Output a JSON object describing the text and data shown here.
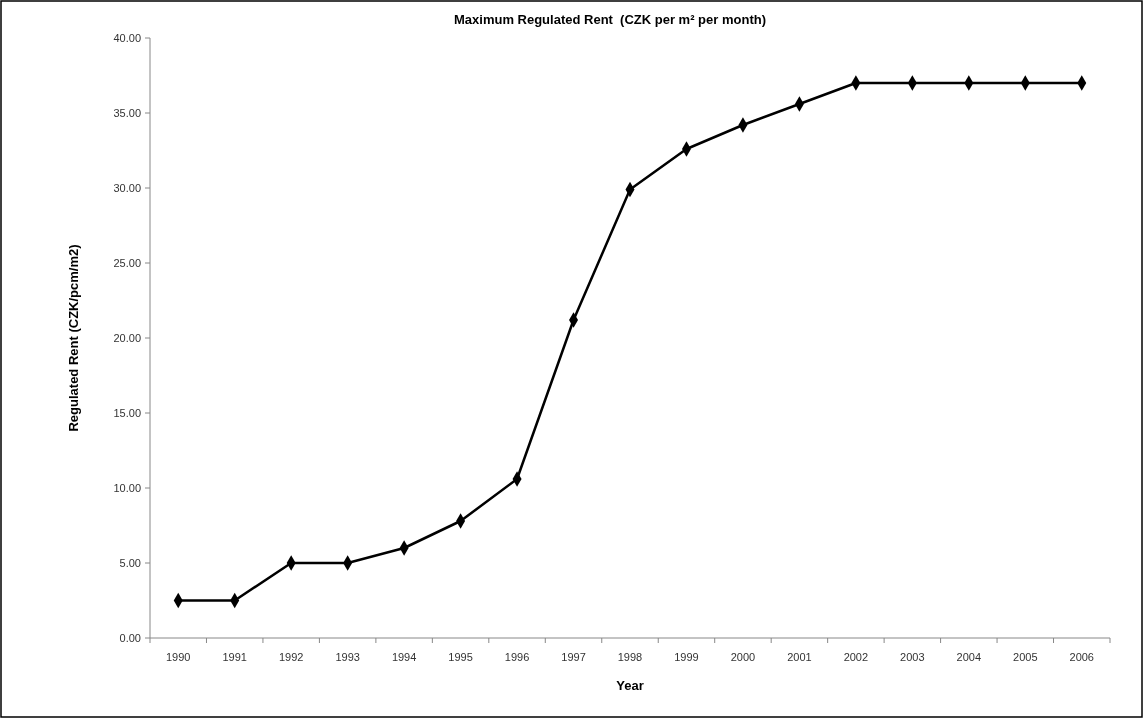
{
  "chart_data": {
    "type": "line",
    "title": "Maximum Regulated Rent  (CZK per m² per month)",
    "xlabel": "Year",
    "ylabel": "Regulated Rent (CZK/pcm/m2)",
    "categories": [
      "1990",
      "1991",
      "1992",
      "1993",
      "1994",
      "1995",
      "1996",
      "1997",
      "1998",
      "1999",
      "2000",
      "2001",
      "2002",
      "2003",
      "2004",
      "2005",
      "2006"
    ],
    "series": [
      {
        "color": "#000000",
        "values": [
          2.5,
          2.5,
          5.0,
          5.0,
          6.0,
          7.8,
          10.6,
          21.2,
          29.9,
          32.6,
          34.2,
          35.6,
          37.0,
          37.0,
          37.0,
          37.0,
          37.0
        ]
      }
    ],
    "ylim": [
      0,
      40
    ],
    "yticks": [
      {
        "value": 0,
        "label": "0.00"
      },
      {
        "value": 5,
        "label": "5.00"
      },
      {
        "value": 10,
        "label": "10.00"
      },
      {
        "value": 15,
        "label": "15.00"
      },
      {
        "value": 20,
        "label": "20.00"
      },
      {
        "value": 25,
        "label": "25.00"
      },
      {
        "value": 30,
        "label": "30.00"
      },
      {
        "value": 35,
        "label": "35.00"
      },
      {
        "value": 40,
        "label": "40.00"
      }
    ],
    "marker": "diamond",
    "line_style": "solid",
    "grid": false
  }
}
